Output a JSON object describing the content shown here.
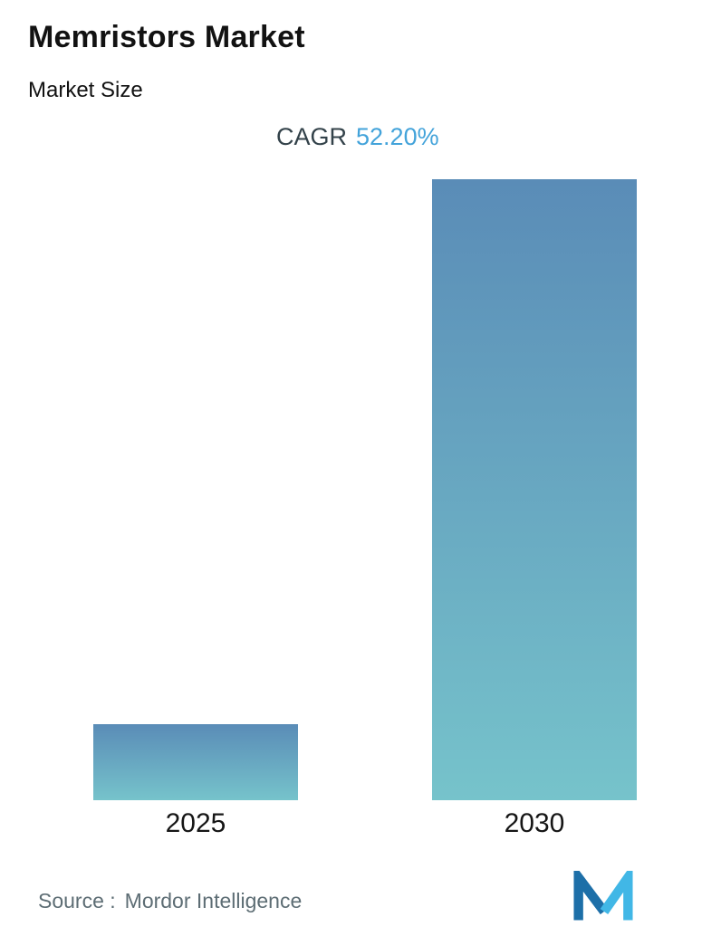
{
  "header": {
    "title": "Memristors Market",
    "subtitle": "Market Size"
  },
  "cagr": {
    "label": "CAGR",
    "value": "52.20%",
    "value_color": "#43a3da",
    "label_color": "#33424a"
  },
  "chart_data": {
    "type": "bar",
    "title": "Memristors Market - Market Size",
    "categories": [
      "2025",
      "2030"
    ],
    "values": [
      1,
      8.16
    ],
    "values_note": "No numeric axis shown; heights are relative, 2030 ~8.16x 2025 (CAGR 52.20% over 5 years, estimated from bar heights)",
    "xlabel": "",
    "ylabel": "",
    "grid": false,
    "legend": false,
    "bar_gradient": {
      "top": "#5a8cb7",
      "bottom": "#76c3cb"
    }
  },
  "footer": {
    "source_label": "Source :",
    "source_value": "Mordor Intelligence",
    "logo_name": "mordor-intelligence-logo",
    "logo_colors": {
      "dark": "#1d6fa8",
      "light": "#41b7e6"
    }
  }
}
